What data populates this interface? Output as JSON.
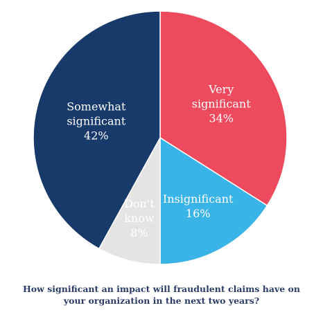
{
  "chart_data": {
    "type": "pie",
    "title": "",
    "caption_lines": [
      "How significant an impact will fraudulent claims have on",
      "your organization in the next two years?"
    ],
    "slices": [
      {
        "label_lines": [
          "Very",
          "significant"
        ],
        "value": 34,
        "value_label": "34%",
        "color": "#ee4a5e",
        "text_color": "#ffffff"
      },
      {
        "label_lines": [
          "Insignificant"
        ],
        "value": 16,
        "value_label": "16%",
        "color": "#3ab4e6",
        "text_color": "#ffffff"
      },
      {
        "label_lines": [
          "Don't",
          "know"
        ],
        "value": 8,
        "value_label": "8%",
        "color": "#e4e4e4",
        "text_color": "#1c2e55"
      },
      {
        "label_lines": [
          "Somewhat",
          "significant"
        ],
        "value": 42,
        "value_label": "42%",
        "color": "#173a6b",
        "text_color": "#ffffff"
      }
    ]
  }
}
